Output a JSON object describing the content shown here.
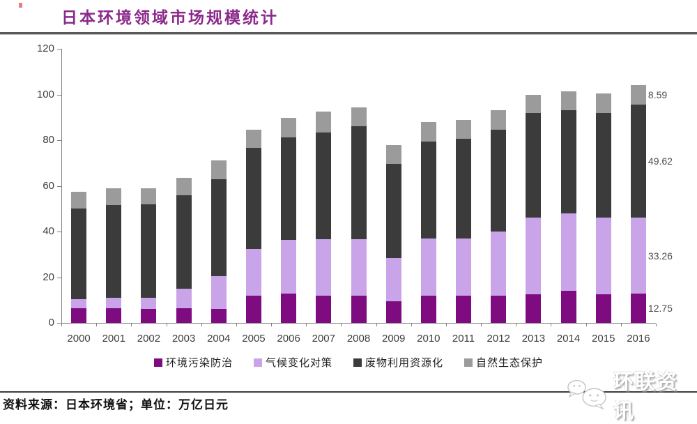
{
  "title": {
    "text": "日本环境领域市场规模统计"
  },
  "source_note": "资料来源：日本环境省；单位：万亿日元",
  "logo": {
    "text": "环联资讯",
    "icon": "chat-bubbles-icon"
  },
  "colors": {
    "title": "#8b2a8b",
    "axis": "#808080",
    "tick_label": "#3d3d3d",
    "series_1": "#7e0b80",
    "series_2": "#c9a4e8",
    "series_3": "#3b3b3b",
    "series_4": "#9b9b9b"
  },
  "chart_data": {
    "type": "bar",
    "stacked": true,
    "grid": false,
    "legend_position": "bottom",
    "ylim": [
      0,
      120
    ],
    "yticks": [
      0,
      20,
      40,
      60,
      80,
      100,
      120
    ],
    "xlabel": "",
    "ylabel": "",
    "categories": [
      "2000",
      "2001",
      "2002",
      "2003",
      "2004",
      "2005",
      "2006",
      "2007",
      "2008",
      "2009",
      "2010",
      "2011",
      "2012",
      "2013",
      "2014",
      "2015",
      "2016"
    ],
    "series": [
      {
        "name": "环境污染防治",
        "color": "#7e0b80",
        "values": [
          6.5,
          6.5,
          6.0,
          6.5,
          6.0,
          12.0,
          12.8,
          12.0,
          12.0,
          9.5,
          12.0,
          12.0,
          12.0,
          12.5,
          14.0,
          12.5,
          12.75
        ]
      },
      {
        "name": "气候变化对策",
        "color": "#c9a4e8",
        "values": [
          4.0,
          4.5,
          5.0,
          8.5,
          14.5,
          20.5,
          23.5,
          24.5,
          24.5,
          19.0,
          25.0,
          25.0,
          28.0,
          33.5,
          34.0,
          33.5,
          33.26
        ]
      },
      {
        "name": "废物利用资源化",
        "color": "#3b3b3b",
        "values": [
          39.5,
          40.5,
          41.0,
          41.0,
          42.5,
          44.0,
          45.0,
          47.0,
          49.5,
          41.0,
          42.5,
          43.5,
          44.5,
          46.0,
          45.0,
          46.0,
          49.62
        ]
      },
      {
        "name": "自然生态保护",
        "color": "#9b9b9b",
        "values": [
          7.5,
          7.5,
          7.0,
          7.5,
          8.0,
          8.0,
          8.5,
          9.0,
          8.5,
          8.5,
          8.5,
          8.5,
          8.5,
          8.0,
          8.5,
          8.5,
          8.59
        ]
      }
    ],
    "data_labels": {
      "category": "2016",
      "category_index": 16,
      "labels": [
        "12.75",
        "33.26",
        "49.62",
        "8.59"
      ]
    }
  }
}
